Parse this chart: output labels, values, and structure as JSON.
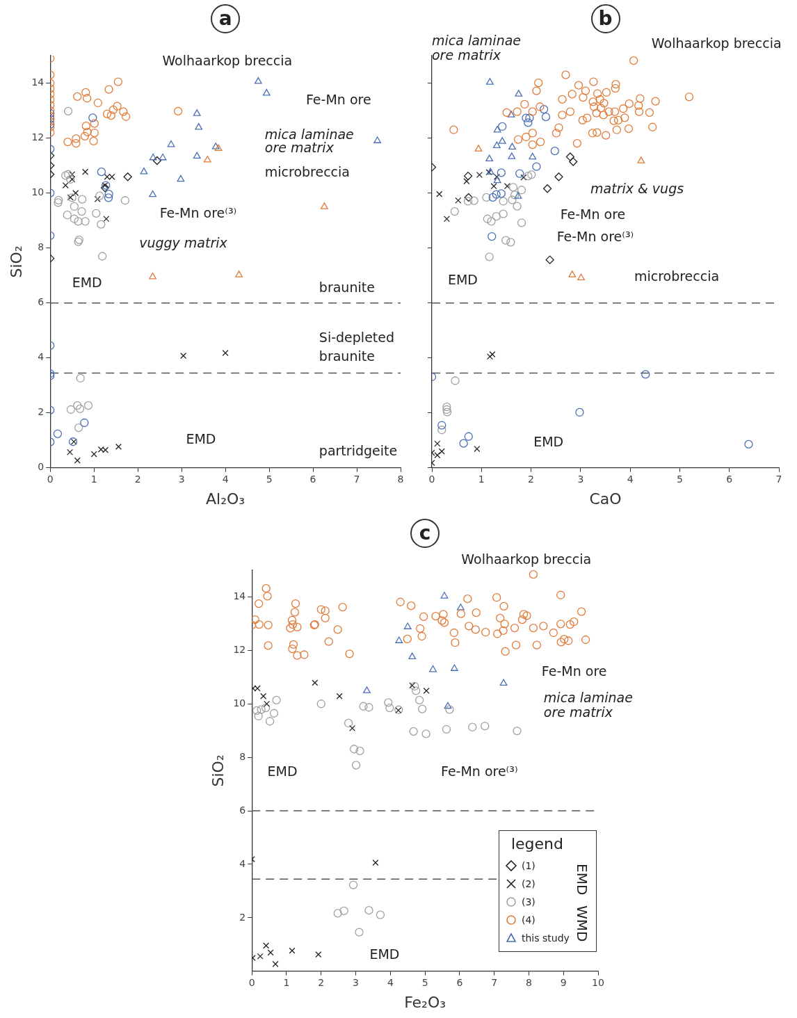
{
  "chart_data": [
    {
      "type": "scatter",
      "title": "a",
      "xlabel": "Al₂O₃",
      "ylabel": "SiO₂",
      "xlim": [
        0,
        8
      ],
      "ylim": [
        0,
        15
      ],
      "xticks": [
        0,
        1,
        2,
        3,
        4,
        5,
        6,
        7,
        8
      ],
      "yticks": [
        0,
        2,
        4,
        6,
        8,
        10,
        12,
        14
      ],
      "series": [
        {
          "color": "#e07b39",
          "marker": "circle",
          "x": [
            0,
            0,
            0,
            0,
            0,
            0,
            0,
            0,
            0,
            0,
            0,
            0,
            1.55,
            1.34,
            0.81,
            0.62,
            0.84,
            1.09,
            1.53,
            1.44,
            2.92,
            1.67,
            1.3,
            1.39,
            1.73,
            1.01,
            0.82,
            1.01,
            0.85,
            0.79,
            0.59,
            0.4,
            0.59,
            0.99
          ],
          "values": [
            14.9,
            14.3,
            14.0,
            13.8,
            13.6,
            13.4,
            13.2,
            13.0,
            12.8,
            12.6,
            12.4,
            12.2,
            14.05,
            13.77,
            13.66,
            13.51,
            13.45,
            13.28,
            13.16,
            13.03,
            12.98,
            12.96,
            12.88,
            12.82,
            12.78,
            12.53,
            12.44,
            12.19,
            12.22,
            12.07,
            11.98,
            11.86,
            11.81,
            11.89
          ]
        },
        {
          "color": "#e07b39",
          "marker": "triangle",
          "x": [
            3.84,
            3.59,
            6.26,
            2.34,
            4.31
          ],
          "values": [
            11.62,
            11.2,
            9.5,
            6.95,
            7.02
          ]
        },
        {
          "color": "#4a6fb5",
          "marker": "triangle",
          "x": [
            4.75,
            4.94,
            3.35,
            3.39,
            2.76,
            3.35,
            3.78,
            2.14,
            2.35,
            2.57,
            2.98,
            2.34,
            7.47
          ],
          "values": [
            14.06,
            13.63,
            12.89,
            12.39,
            11.76,
            11.34,
            11.68,
            10.77,
            11.28,
            11.28,
            10.5,
            9.94,
            11.9
          ]
        },
        {
          "color": "#4a6fb5",
          "marker": "circle",
          "x": [
            0,
            0,
            0,
            0,
            0,
            0,
            0.97,
            1.17,
            1.27,
            1.34,
            1.33,
            0,
            0,
            0,
            0,
            0,
            0.17,
            0.78,
            0.52
          ],
          "values": [
            12.9,
            12.7,
            12.5,
            11.6,
            10.0,
            8.45,
            12.74,
            10.77,
            10.28,
            9.96,
            9.83,
            4.45,
            3.43,
            3.35,
            2.1,
            0.94,
            1.24,
            1.64,
            0.95
          ]
        },
        {
          "color": "#a0a0a0",
          "marker": "circle",
          "x": [
            0.41,
            0.35,
            0.41,
            0.46,
            0.19,
            0.18,
            0.5,
            0.73,
            0.55,
            0.72,
            0.39,
            0.55,
            0.64,
            0.8,
            1.13,
            1.05,
            1.16,
            1.71,
            0.66,
            0.64,
            1.19,
            0.69,
            0.62,
            0.87,
            0.68,
            0.47,
            0.65
          ],
          "values": [
            12.98,
            10.64,
            10.68,
            10.5,
            9.74,
            9.65,
            9.83,
            9.77,
            9.51,
            9.33,
            9.2,
            9.06,
            8.97,
            8.97,
            9.9,
            9.26,
            8.86,
            9.73,
            8.3,
            8.23,
            7.7,
            3.26,
            2.27,
            2.27,
            2.15,
            2.12,
            1.46
          ]
        },
        {
          "color": "#222222",
          "marker": "diamond",
          "x": [
            0,
            0,
            0,
            0,
            2.44,
            1.77,
            1.25
          ],
          "values": [
            11.36,
            11.0,
            10.68,
            7.62,
            11.18,
            10.59,
            10.19
          ]
        },
        {
          "color": "#222222",
          "marker": "cross",
          "x": [
            0.8,
            0.5,
            0.5,
            0.35,
            0.58,
            0.46,
            1.08,
            1.3,
            1.41,
            1.25,
            1.28,
            3.04,
            4.0,
            0.54,
            0.45,
            0.62,
            1.0,
            1.16,
            1.26,
            1.56
          ],
          "values": [
            10.77,
            10.68,
            10.5,
            10.28,
            10.0,
            9.84,
            9.78,
            10.59,
            10.59,
            10.28,
            9.06,
            4.08,
            4.18,
            0.95,
            0.57,
            0.27,
            0.5,
            0.67,
            0.65,
            0.77
          ]
        }
      ],
      "ref_lines": [
        {
          "axis": "y",
          "value": 6,
          "color": "#555555",
          "line_style": "dashed"
        },
        {
          "axis": "y",
          "value": 3.45,
          "color": "#555555",
          "line_style": "dashed"
        }
      ],
      "annotations": [
        "Wolhaarkop breccia",
        "Fe-Mn ore",
        "mica laminae",
        "ore matrix",
        "microbreccia",
        "Fe-Mn ore⁽³⁾",
        "vuggy matrix",
        "EMD",
        "EMD",
        "braunite",
        "Si-depleted",
        "braunite",
        "partridgeite"
      ]
    },
    {
      "type": "scatter",
      "title": "b",
      "xlabel": "CaO",
      "xlim": [
        0,
        7
      ],
      "ylim": [
        0,
        15
      ],
      "xticks": [
        0,
        1,
        2,
        3,
        4,
        5,
        6,
        7
      ],
      "yticks": [
        0,
        2,
        4,
        6,
        8,
        10,
        12,
        14
      ],
      "tick_labels": "x",
      "series": [
        {
          "color": "#e07b39",
          "marker": "circle",
          "x": [
            4.07,
            2.7,
            2.15,
            2.11,
            2.96,
            3.26,
            3.71,
            3.7,
            3.1,
            2.83,
            2.63,
            3.05,
            3.34,
            3.52,
            3.39,
            3.25,
            3.47,
            4.2,
            4.51,
            5.19,
            3.98,
            4.17,
            3.86,
            4.18,
            4.39,
            3.27,
            3.41,
            3.57,
            3.69,
            3.32,
            3.46,
            3.13,
            3.04,
            3.67,
            3.76,
            3.89,
            2.79,
            2.63,
            2.56,
            2.51,
            3.24,
            3.33,
            3.51,
            3.73,
            3.97,
            4.45,
            2.93,
            0.44,
            1.87,
            1.72,
            1.51,
            2.03,
            2.18,
            2.03,
            1.9,
            1.74,
            2.19,
            2.03
          ],
          "values": [
            14.82,
            14.3,
            14.01,
            13.72,
            13.92,
            14.05,
            13.96,
            13.81,
            13.72,
            13.6,
            13.41,
            13.48,
            13.62,
            13.66,
            13.41,
            13.32,
            13.27,
            13.44,
            13.34,
            13.5,
            13.25,
            13.18,
            13.07,
            12.96,
            12.93,
            13.14,
            13.09,
            12.96,
            12.96,
            12.91,
            12.84,
            12.73,
            12.65,
            12.63,
            12.65,
            12.74,
            12.96,
            12.84,
            12.38,
            12.18,
            12.18,
            12.2,
            12.1,
            12.3,
            12.34,
            12.4,
            11.81,
            12.3,
            13.23,
            12.96,
            12.93,
            12.96,
            13.14,
            12.18,
            12.04,
            11.95,
            11.86,
            11.76
          ]
        },
        {
          "color": "#e07b39",
          "marker": "triangle",
          "x": [
            0.94,
            4.22,
            2.83,
            3.01
          ],
          "values": [
            11.6,
            11.17,
            7.02,
            6.91
          ]
        },
        {
          "color": "#4a6fb5",
          "marker": "triangle",
          "x": [
            1.17,
            1.75,
            1.6,
            1.32,
            1.42,
            1.31,
            1.62,
            1.16,
            1.61,
            2.03,
            1.18,
            1.32,
            1.74
          ],
          "values": [
            14.03,
            13.6,
            12.84,
            12.29,
            11.88,
            11.72,
            11.67,
            11.24,
            11.32,
            11.31,
            10.76,
            10.45,
            9.88
          ]
        },
        {
          "color": "#4a6fb5",
          "marker": "circle",
          "x": [
            2.26,
            2.3,
            1.9,
            1.97,
            1.94,
            1.42,
            2.48,
            2.11,
            1.4,
            1.77,
            1.3,
            1.23,
            1.4,
            1.21,
            0,
            4.31,
            2.98,
            6.39,
            0.2,
            0.74,
            0.64
          ],
          "values": [
            13.05,
            12.77,
            12.73,
            12.73,
            12.56,
            12.42,
            11.53,
            10.96,
            10.74,
            10.71,
            9.95,
            9.84,
            9.98,
            8.42,
            3.31,
            3.4,
            2.02,
            0.86,
            1.55,
            1.14,
            0.89
          ]
        },
        {
          "color": "#a0a0a0",
          "marker": "circle",
          "x": [
            2.01,
            1.94,
            1.64,
            1.81,
            0.46,
            0.85,
            0.73,
            1.1,
            1.44,
            1.62,
            1.72,
            1.12,
            1.3,
            1.44,
            1.2,
            1.81,
            1.49,
            1.59,
            1.16,
            1.67,
            0.47,
            0.3,
            0.31,
            0.3,
            0.2
          ],
          "values": [
            10.67,
            10.62,
            10.21,
            10.11,
            9.33,
            9.72,
            9.7,
            9.84,
            9.7,
            9.75,
            9.52,
            9.06,
            9.15,
            9.24,
            8.97,
            8.92,
            8.28,
            8.21,
            7.68,
            9.93,
            3.17,
            2.22,
            2.03,
            2.12,
            1.38
          ]
        },
        {
          "color": "#222222",
          "marker": "diamond",
          "x": [
            0,
            0.73,
            0.74,
            2.79,
            2.85,
            2.56,
            2.33,
            2.38
          ],
          "values": [
            10.94,
            10.62,
            9.84,
            11.32,
            11.14,
            10.59,
            10.16,
            7.57
          ]
        },
        {
          "color": "#222222",
          "marker": "cross",
          "x": [
            0.96,
            0.7,
            1.15,
            1.31,
            1.25,
            1.52,
            1.85,
            0.15,
            0.53,
            0.3,
            1.17,
            1.22,
            0,
            0,
            0.11,
            0.11,
            0.2,
            0.91
          ],
          "values": [
            10.66,
            10.43,
            10.76,
            10.59,
            10.25,
            10.25,
            10.57,
            9.96,
            9.73,
            9.06,
            4.05,
            4.13,
            0.55,
            0.18,
            0.88,
            0.46,
            0.6,
            0.69
          ]
        }
      ],
      "ref_lines": [
        {
          "axis": "y",
          "value": 6,
          "color": "#555555",
          "line_style": "dashed"
        },
        {
          "axis": "y",
          "value": 3.45,
          "color": "#555555",
          "line_style": "dashed"
        }
      ],
      "annotations": [
        "mica laminae",
        "ore matrix",
        "Wolhaarkop breccia",
        "matrix & vugs",
        "Fe-Mn ore",
        "Fe-Mn ore⁽³⁾",
        "microbreccia",
        "EMD",
        "EMD"
      ]
    },
    {
      "type": "scatter",
      "title": "c",
      "xlabel": "Fe₂O₃",
      "ylabel": "SiO₂",
      "xlim": [
        0,
        10
      ],
      "ylim": [
        0,
        15
      ],
      "xticks": [
        0,
        1,
        2,
        3,
        4,
        5,
        6,
        7,
        8,
        9,
        10
      ],
      "yticks": [
        2,
        4,
        6,
        8,
        10,
        12,
        14
      ],
      "legend": "bottom right",
      "legend_title": "legend",
      "series": [
        {
          "name": "(1)",
          "color": "#222222",
          "marker": "diamond"
        },
        {
          "name": "(2)",
          "color": "#222222",
          "marker": "cross",
          "x": [
            0.03,
            0.16,
            0.33,
            0.43,
            1.82,
            2.53,
            2.9,
            4.23,
            4.63,
            5.04,
            0,
            3.57,
            0.02,
            0.24,
            0.41,
            0.54,
            0.68,
            1.16,
            1.92
          ],
          "values": [
            10.58,
            10.58,
            10.29,
            10.0,
            10.79,
            10.29,
            9.09,
            9.76,
            10.69,
            10.49,
            4.19,
            4.06,
            0.5,
            0.56,
            0.96,
            0.7,
            0.27,
            0.77,
            0.63
          ]
        },
        {
          "name": "(3)",
          "color": "#a0a0a0",
          "marker": "circle",
          "x": [
            4.7,
            4.74,
            4.84,
            4.92,
            3.94,
            3.98,
            3.22,
            3.38,
            4.24,
            5.71,
            0.71,
            0.14,
            0.27,
            0.19,
            0.4,
            0.64,
            0.52,
            2.0,
            2.79,
            2.95,
            3.12,
            3.01,
            4.67,
            5.03,
            5.62,
            6.37,
            6.73,
            7.66,
            2.93,
            2.48,
            2.66,
            3.38,
            3.71,
            3.1
          ],
          "values": [
            10.66,
            10.49,
            10.14,
            9.81,
            10.05,
            9.85,
            9.91,
            9.87,
            9.78,
            9.79,
            10.14,
            9.75,
            9.79,
            9.54,
            9.85,
            9.65,
            9.35,
            10.0,
            9.28,
            8.31,
            8.24,
            7.71,
            8.97,
            8.88,
            9.05,
            9.13,
            9.17,
            8.99,
            3.23,
            2.17,
            2.26,
            2.28,
            2.11,
            1.46
          ]
        },
        {
          "name": "(4)",
          "color": "#e07b39",
          "marker": "circle",
          "x": [
            0.41,
            0.45,
            0.2,
            0.09,
            0,
            0.21,
            0.47,
            0.47,
            1.26,
            1.24,
            1.16,
            1.18,
            1.11,
            1.31,
            1.2,
            1.17,
            1.31,
            1.51,
            1.8,
            1.82,
            2.0,
            2.12,
            2.12,
            2.62,
            2.48,
            2.22,
            2.82,
            4.29,
            4.6,
            4.49,
            4.86,
            4.91,
            4.96,
            5.31,
            5.53,
            5.49,
            5.56,
            5.84,
            5.87,
            6.04,
            6.23,
            6.27,
            6.46,
            6.48,
            6.75,
            7.07,
            7.28,
            7.17,
            7.3,
            7.26,
            7.09,
            7.59,
            7.63,
            7.32,
            7.81,
            7.85,
            7.94,
            8.13,
            8.13,
            8.23,
            8.42,
            8.71,
            8.92,
            8.92,
            8.93,
            9.02,
            9.14,
            9.19,
            9.3,
            9.52,
            9.64
          ],
          "values": [
            14.32,
            14.03,
            13.75,
            13.15,
            12.95,
            12.97,
            12.95,
            12.18,
            13.75,
            13.43,
            13.13,
            12.97,
            12.83,
            12.87,
            12.22,
            12.06,
            11.81,
            11.84,
            12.95,
            12.97,
            13.53,
            13.48,
            13.21,
            13.62,
            12.78,
            12.33,
            11.87,
            13.81,
            13.67,
            12.43,
            12.82,
            12.53,
            13.26,
            13.28,
            13.35,
            13.12,
            13.04,
            12.66,
            12.29,
            13.37,
            13.93,
            12.91,
            12.78,
            13.41,
            12.68,
            13.98,
            13.65,
            13.21,
            12.99,
            12.74,
            12.62,
            12.84,
            12.2,
            11.96,
            13.15,
            13.35,
            13.3,
            14.84,
            12.84,
            12.2,
            12.91,
            12.66,
            14.07,
            12.99,
            12.31,
            12.42,
            12.36,
            12.97,
            13.07,
            13.45,
            12.4
          ]
        },
        {
          "name": "this study",
          "color": "#4a6fb5",
          "marker": "triangle",
          "x": [
            5.56,
            6.03,
            4.5,
            4.25,
            4.63,
            5.23,
            5.85,
            7.27,
            3.32,
            5.66
          ],
          "values": [
            14.03,
            13.59,
            12.88,
            12.36,
            11.76,
            11.28,
            11.32,
            10.77,
            10.49,
            9.91
          ]
        }
      ],
      "ref_lines": [
        {
          "axis": "y",
          "value": 6,
          "color": "#555555",
          "line_style": "dashed"
        },
        {
          "axis": "y",
          "value": 3.45,
          "color": "#555555",
          "line_style": "dashed"
        }
      ],
      "annotations": [
        "Wolhaarkop breccia",
        "Fe-Mn ore",
        "mica laminae",
        "ore matrix",
        "Fe-Mn ore⁽³⁾",
        "EMD",
        "EMD",
        "EMD",
        "WMD"
      ]
    }
  ]
}
